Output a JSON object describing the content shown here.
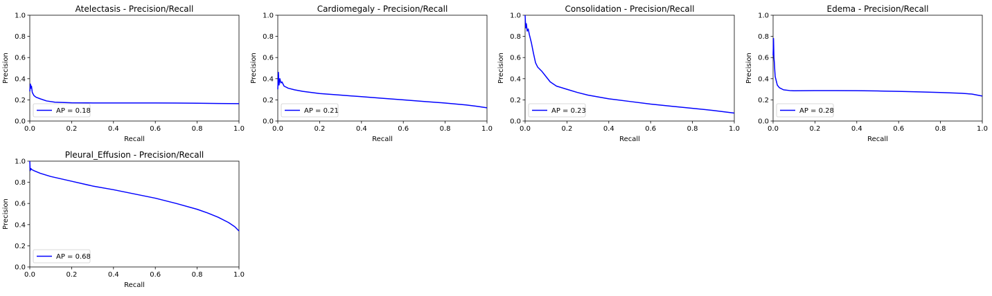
{
  "figure": {
    "line_color": "#0000ff",
    "x_ticks": [
      "0.0",
      "0.2",
      "0.4",
      "0.6",
      "0.8",
      "1.0"
    ],
    "y_ticks": [
      "0.0",
      "0.2",
      "0.4",
      "0.6",
      "0.8",
      "1.0"
    ]
  },
  "chart_data": [
    {
      "type": "line",
      "title": "Atelectasis - Precision/Recall",
      "xlabel": "Recall",
      "ylabel": "Precision",
      "xlim": [
        0,
        1
      ],
      "ylim": [
        0,
        1
      ],
      "grid": false,
      "legend_position": "lower-left",
      "series": [
        {
          "name": "AP = 0.18",
          "x": [
            0,
            0.003,
            0.005,
            0.008,
            0.012,
            0.02,
            0.03,
            0.05,
            0.08,
            0.12,
            0.2,
            0.3,
            0.4,
            0.5,
            0.6,
            0.7,
            0.8,
            0.9,
            1.0
          ],
          "y": [
            0.28,
            0.35,
            0.31,
            0.33,
            0.27,
            0.24,
            0.225,
            0.21,
            0.19,
            0.178,
            0.172,
            0.171,
            0.171,
            0.171,
            0.171,
            0.17,
            0.168,
            0.166,
            0.164
          ]
        }
      ]
    },
    {
      "type": "line",
      "title": "Cardiomegaly - Precision/Recall",
      "xlabel": "Recall",
      "ylabel": "Precision",
      "xlim": [
        0,
        1
      ],
      "ylim": [
        0,
        1
      ],
      "grid": false,
      "legend_position": "lower-left",
      "series": [
        {
          "name": "AP = 0.21",
          "x": [
            0,
            0.003,
            0.006,
            0.01,
            0.015,
            0.02,
            0.03,
            0.05,
            0.08,
            0.12,
            0.2,
            0.3,
            0.4,
            0.5,
            0.6,
            0.7,
            0.8,
            0.9,
            0.95,
            1.0
          ],
          "y": [
            0.3,
            0.46,
            0.34,
            0.4,
            0.36,
            0.37,
            0.33,
            0.31,
            0.295,
            0.28,
            0.26,
            0.245,
            0.23,
            0.215,
            0.2,
            0.185,
            0.17,
            0.152,
            0.14,
            0.125
          ]
        }
      ]
    },
    {
      "type": "line",
      "title": "Consolidation - Precision/Recall",
      "xlabel": "Recall",
      "ylabel": "Precision",
      "xlim": [
        0,
        1
      ],
      "ylim": [
        0,
        1
      ],
      "grid": false,
      "legend_position": "lower-left",
      "series": [
        {
          "name": "AP = 0.23",
          "x": [
            0,
            0.003,
            0.006,
            0.01,
            0.015,
            0.02,
            0.03,
            0.04,
            0.05,
            0.06,
            0.08,
            0.1,
            0.12,
            0.15,
            0.2,
            0.25,
            0.3,
            0.4,
            0.5,
            0.6,
            0.7,
            0.8,
            0.9,
            1.0
          ],
          "y": [
            1.0,
            0.88,
            0.92,
            0.85,
            0.87,
            0.82,
            0.74,
            0.64,
            0.55,
            0.51,
            0.47,
            0.42,
            0.37,
            0.33,
            0.3,
            0.27,
            0.245,
            0.21,
            0.185,
            0.16,
            0.14,
            0.12,
            0.1,
            0.075
          ]
        }
      ]
    },
    {
      "type": "line",
      "title": "Edema - Precision/Recall",
      "xlabel": "Recall",
      "ylabel": "Precision",
      "xlim": [
        0,
        1
      ],
      "ylim": [
        0,
        1
      ],
      "grid": false,
      "legend_position": "lower-left",
      "series": [
        {
          "name": "AP = 0.28",
          "x": [
            0,
            0.002,
            0.004,
            0.006,
            0.008,
            0.01,
            0.015,
            0.02,
            0.03,
            0.05,
            0.08,
            0.1,
            0.2,
            0.3,
            0.4,
            0.5,
            0.6,
            0.7,
            0.8,
            0.9,
            0.95,
            1.0
          ],
          "y": [
            0.62,
            0.78,
            0.6,
            0.55,
            0.48,
            0.42,
            0.38,
            0.34,
            0.315,
            0.295,
            0.288,
            0.286,
            0.288,
            0.288,
            0.287,
            0.284,
            0.28,
            0.275,
            0.27,
            0.262,
            0.255,
            0.236
          ]
        }
      ]
    },
    {
      "type": "line",
      "title": "Pleural_Effusion - Precision/Recall",
      "xlabel": "Recall",
      "ylabel": "Precision",
      "xlim": [
        0,
        1
      ],
      "ylim": [
        0,
        1
      ],
      "grid": false,
      "legend_position": "lower-left",
      "series": [
        {
          "name": "AP = 0.68",
          "x": [
            0,
            0.002,
            0.005,
            0.01,
            0.02,
            0.05,
            0.1,
            0.2,
            0.3,
            0.4,
            0.5,
            0.6,
            0.7,
            0.8,
            0.85,
            0.9,
            0.95,
            0.98,
            1.0
          ],
          "y": [
            1.0,
            0.91,
            0.93,
            0.92,
            0.91,
            0.885,
            0.855,
            0.81,
            0.765,
            0.73,
            0.69,
            0.65,
            0.6,
            0.545,
            0.51,
            0.47,
            0.42,
            0.38,
            0.34
          ]
        }
      ]
    }
  ]
}
